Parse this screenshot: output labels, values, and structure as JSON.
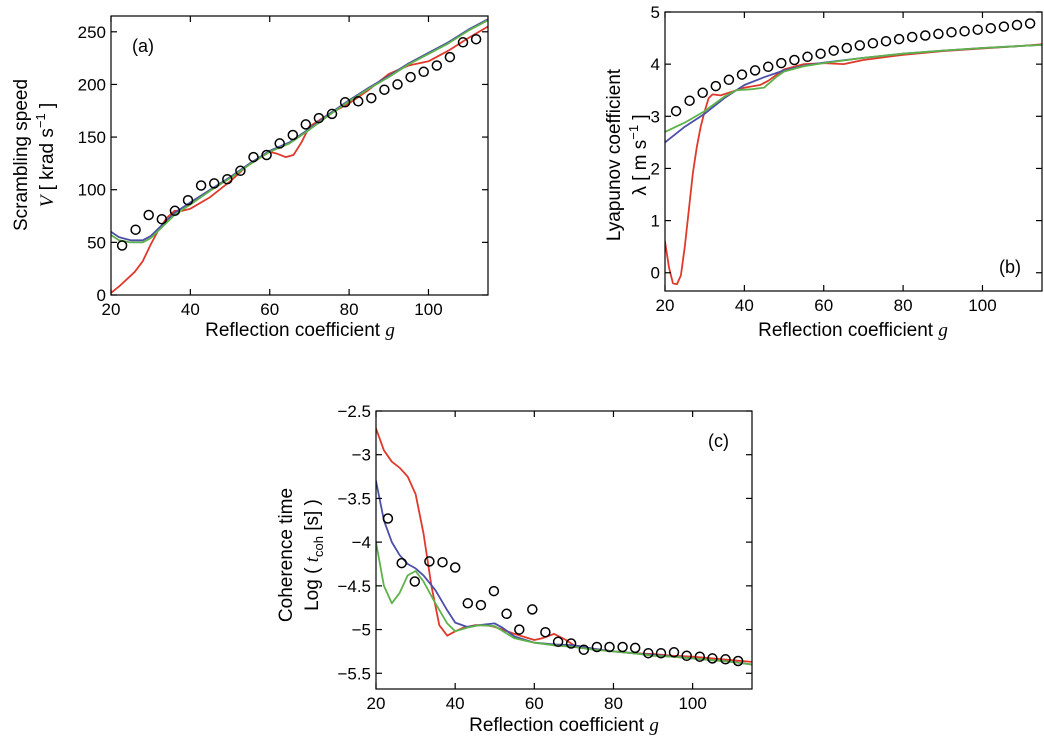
{
  "colors": {
    "red": "#e0392b",
    "blue": "#4b4fa8",
    "green": "#5fb14a",
    "markers": "#000000"
  },
  "chart_data": [
    {
      "type": "line",
      "panel_label": "(a)",
      "xlabel": "Reflection coefficient",
      "xlabel_symbol": "g",
      "ylabel_line1": "Scrambling speed",
      "ylabel_symbol": "V",
      "ylabel_units_pre": "[ krad s",
      "ylabel_units_exp": "−1",
      "ylabel_units_post": "]",
      "xlim": [
        20,
        115
      ],
      "ylim": [
        0,
        265
      ],
      "xticks": [
        20,
        40,
        60,
        80,
        100
      ],
      "yticks": [
        0,
        50,
        100,
        150,
        200,
        250
      ],
      "grid": false,
      "markers": {
        "x": [
          22.8,
          26.2,
          29.5,
          32.8,
          36.1,
          39.4,
          42.7,
          46.0,
          49.3,
          52.6,
          55.9,
          59.2,
          62.5,
          65.8,
          69.1,
          72.4,
          75.7,
          79.0,
          82.3,
          85.6,
          88.9,
          92.2,
          95.5,
          98.8,
          102.1,
          105.4,
          108.7,
          112.0
        ],
        "y": [
          47,
          62,
          76,
          72,
          80,
          90,
          104,
          106,
          110,
          118,
          131,
          133,
          144,
          152,
          162,
          168,
          172,
          183,
          184,
          187,
          195,
          200,
          207,
          212,
          218,
          226,
          240,
          243
        ]
      },
      "series": [
        {
          "color_key": "red",
          "x": [
            20,
            22,
            24,
            26,
            28,
            30,
            32,
            34,
            36,
            38,
            40,
            45,
            50,
            55,
            60,
            62,
            64,
            66,
            68,
            70,
            75,
            80,
            85,
            90,
            95,
            100,
            105,
            110,
            115
          ],
          "y": [
            2,
            8,
            15,
            22,
            32,
            48,
            62,
            73,
            80,
            80,
            82,
            93,
            108,
            125,
            136,
            134,
            131,
            133,
            145,
            160,
            172,
            182,
            195,
            210,
            218,
            222,
            232,
            244,
            255
          ]
        },
        {
          "color_key": "blue",
          "x": [
            20,
            22,
            25,
            28,
            30,
            33,
            36,
            40,
            45,
            50,
            55,
            60,
            65,
            70,
            75,
            80,
            85,
            90,
            95,
            100,
            105,
            110,
            115
          ],
          "y": [
            60,
            55,
            52,
            52,
            56,
            67,
            78,
            88,
            100,
            112,
            125,
            137,
            145,
            158,
            172,
            185,
            197,
            208,
            220,
            230,
            240,
            252,
            262
          ]
        },
        {
          "color_key": "green",
          "x": [
            20,
            22,
            25,
            28,
            30,
            33,
            36,
            40,
            45,
            50,
            55,
            60,
            65,
            70,
            75,
            80,
            85,
            90,
            95,
            100,
            105,
            110,
            115
          ],
          "y": [
            57,
            52,
            50,
            50,
            54,
            65,
            76,
            86,
            99,
            111,
            124,
            136,
            144,
            157,
            171,
            184,
            196,
            207,
            219,
            229,
            239,
            251,
            261
          ]
        }
      ]
    },
    {
      "type": "line",
      "panel_label": "(b)",
      "xlabel": "Reflection coefficient",
      "xlabel_symbol": "g",
      "ylabel_line1": "Lyapunov coefficient",
      "ylabel_symbol": "λ",
      "ylabel_units_pre": "[ m s",
      "ylabel_units_exp": "−1",
      "ylabel_units_post": "]",
      "xlim": [
        20,
        115
      ],
      "ylim": [
        -0.35,
        5
      ],
      "xticks": [
        20,
        40,
        60,
        80,
        100
      ],
      "yticks": [
        0,
        1,
        2,
        3,
        4,
        5
      ],
      "grid": false,
      "markers": {
        "x": [
          22.8,
          26.2,
          29.5,
          32.8,
          36.1,
          39.4,
          42.7,
          46.0,
          49.3,
          52.6,
          55.9,
          59.2,
          62.5,
          65.8,
          69.1,
          72.4,
          75.7,
          79.0,
          82.3,
          85.6,
          88.9,
          92.2,
          95.5,
          98.8,
          102.1,
          105.4,
          108.7,
          112.0
        ],
        "y": [
          3.1,
          3.3,
          3.45,
          3.58,
          3.7,
          3.8,
          3.88,
          3.95,
          4.02,
          4.08,
          4.14,
          4.2,
          4.26,
          4.31,
          4.36,
          4.4,
          4.44,
          4.48,
          4.52,
          4.55,
          4.58,
          4.61,
          4.63,
          4.66,
          4.69,
          4.72,
          4.75,
          4.78
        ]
      },
      "series": [
        {
          "color_key": "red",
          "x": [
            20,
            21,
            22,
            23,
            24,
            25,
            26,
            27,
            28,
            29,
            30,
            31,
            32,
            34,
            36,
            40,
            44,
            46,
            50,
            55,
            60,
            65,
            70,
            80,
            90,
            100,
            110,
            115
          ],
          "y": [
            0.6,
            0.1,
            -0.2,
            -0.22,
            -0.05,
            0.5,
            1.2,
            1.9,
            2.4,
            2.8,
            3.1,
            3.35,
            3.42,
            3.4,
            3.45,
            3.55,
            3.6,
            3.68,
            3.9,
            4.0,
            4.02,
            4.0,
            4.08,
            4.18,
            4.25,
            4.3,
            4.35,
            4.38
          ]
        },
        {
          "color_key": "blue",
          "x": [
            20,
            25,
            30,
            35,
            40,
            45,
            50,
            55,
            60,
            70,
            80,
            90,
            100,
            110,
            115
          ],
          "y": [
            2.5,
            2.8,
            3.05,
            3.35,
            3.6,
            3.75,
            3.88,
            3.97,
            4.03,
            4.12,
            4.2,
            4.26,
            4.31,
            4.35,
            4.37
          ]
        },
        {
          "color_key": "green",
          "x": [
            20,
            25,
            30,
            35,
            38,
            42,
            45,
            48,
            50,
            55,
            60,
            70,
            80,
            90,
            100,
            110,
            115
          ],
          "y": [
            2.7,
            2.88,
            3.1,
            3.38,
            3.5,
            3.52,
            3.55,
            3.75,
            3.86,
            3.96,
            4.02,
            4.12,
            4.2,
            4.26,
            4.31,
            4.35,
            4.37
          ]
        }
      ]
    },
    {
      "type": "line",
      "panel_label": "(c)",
      "xlabel": "Reflection coefficient",
      "xlabel_symbol": "g",
      "ylabel_line1": "Coherence time",
      "ylabel_pre": "Log (",
      "ylabel_symbol": "t",
      "ylabel_sub": "coh",
      "ylabel_units": "[s] )",
      "xlim": [
        20,
        115
      ],
      "ylim": [
        -5.68,
        -2.5
      ],
      "xticks": [
        20,
        40,
        60,
        80,
        100
      ],
      "yticks": [
        -5.5,
        -5,
        -4.5,
        -4,
        -3.5,
        -3,
        -2.5
      ],
      "ytick_labels": [
        "−5.5",
        "−5",
        "−4.5",
        "−4",
        "−3.5",
        "−3",
        "−2.5"
      ],
      "grid": false,
      "markers": {
        "x": [
          23.0,
          26.5,
          29.8,
          33.5,
          36.8,
          40.0,
          43.2,
          46.5,
          49.8,
          53.0,
          56.2,
          59.5,
          62.8,
          66.0,
          69.3,
          72.5,
          75.8,
          79.0,
          82.3,
          85.5,
          88.8,
          92.0,
          95.3,
          98.5,
          101.8,
          105.0,
          108.3,
          111.5
        ],
        "y": [
          -3.73,
          -4.24,
          -4.45,
          -4.22,
          -4.23,
          -4.29,
          -4.7,
          -4.72,
          -4.56,
          -4.82,
          -5.0,
          -4.77,
          -5.03,
          -5.14,
          -5.16,
          -5.23,
          -5.2,
          -5.2,
          -5.2,
          -5.21,
          -5.27,
          -5.27,
          -5.26,
          -5.3,
          -5.31,
          -5.33,
          -5.34,
          -5.36
        ]
      },
      "series": [
        {
          "color_key": "red",
          "x": [
            20,
            22,
            24,
            26,
            28,
            30,
            32,
            34,
            36,
            38,
            40,
            42,
            45,
            48,
            50,
            55,
            60,
            62,
            65,
            68,
            70,
            75,
            80,
            85,
            90,
            95,
            100,
            105,
            110,
            115
          ],
          "y": [
            -2.7,
            -2.95,
            -3.08,
            -3.15,
            -3.25,
            -3.45,
            -3.9,
            -4.5,
            -4.95,
            -5.07,
            -5.02,
            -4.98,
            -4.95,
            -4.95,
            -4.97,
            -5.05,
            -5.12,
            -5.1,
            -5.05,
            -5.12,
            -5.18,
            -5.22,
            -5.25,
            -5.27,
            -5.28,
            -5.3,
            -5.31,
            -5.33,
            -5.35,
            -5.37
          ]
        },
        {
          "color_key": "blue",
          "x": [
            20,
            22,
            24,
            26,
            28,
            30,
            32,
            35,
            38,
            40,
            43,
            46,
            50,
            52,
            55,
            60,
            65,
            70,
            75,
            80,
            85,
            90,
            95,
            100,
            105,
            110,
            115
          ],
          "y": [
            -3.3,
            -3.75,
            -4.0,
            -4.15,
            -4.25,
            -4.3,
            -4.38,
            -4.55,
            -4.78,
            -4.92,
            -4.97,
            -4.95,
            -4.93,
            -4.98,
            -5.08,
            -5.15,
            -5.17,
            -5.18,
            -5.22,
            -5.25,
            -5.27,
            -5.29,
            -5.31,
            -5.33,
            -5.35,
            -5.37,
            -5.4
          ]
        },
        {
          "color_key": "green",
          "x": [
            20,
            22,
            24,
            26,
            28,
            30,
            32,
            35,
            38,
            40,
            43,
            46,
            50,
            55,
            60,
            65,
            70,
            75,
            80,
            85,
            90,
            95,
            100,
            105,
            110,
            115
          ],
          "y": [
            -4.0,
            -4.5,
            -4.7,
            -4.58,
            -4.38,
            -4.33,
            -4.45,
            -4.7,
            -4.93,
            -5.02,
            -4.98,
            -4.95,
            -4.96,
            -5.1,
            -5.15,
            -5.18,
            -5.2,
            -5.23,
            -5.25,
            -5.27,
            -5.3,
            -5.31,
            -5.33,
            -5.35,
            -5.37,
            -5.4
          ]
        }
      ]
    }
  ]
}
